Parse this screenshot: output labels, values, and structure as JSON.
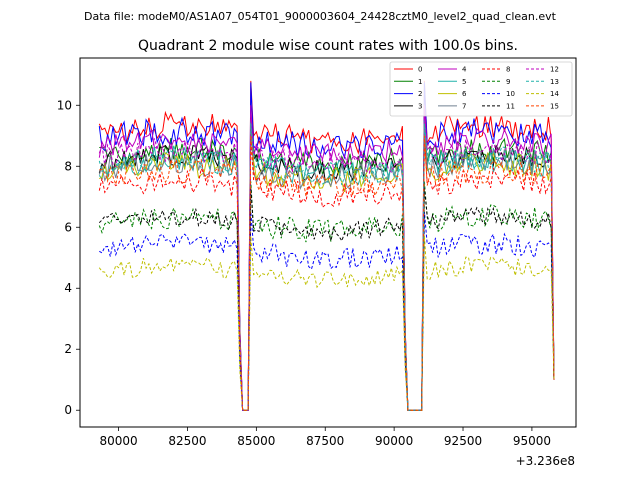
{
  "suptitle": "Data file: modeM0/AS1A07_054T01_9000003604_24428cztM0_level2_quad_clean.evt",
  "chart_data": {
    "type": "line",
    "title": "Quadrant 2 module wise count rates with 100.0s bins.",
    "xlabel": "",
    "ylabel": "",
    "x_offset_label": "+3.236e8",
    "xlim": [
      78600,
      96600
    ],
    "ylim": [
      -0.55,
      11.55
    ],
    "x_ticks": [
      80000,
      82500,
      85000,
      87500,
      90000,
      92500,
      95000
    ],
    "x_tick_labels": [
      "80000",
      "82500",
      "85000",
      "87500",
      "90000",
      "92500",
      "95000"
    ],
    "y_ticks": [
      0,
      2,
      4,
      6,
      8,
      10
    ],
    "y_tick_labels": [
      "0",
      "2",
      "4",
      "6",
      "8",
      "10"
    ],
    "grid": false,
    "legend_position": "top-right",
    "x_range": [
      79300,
      95800
    ],
    "bin_seconds": 100,
    "gaps": [
      {
        "fall_start": 84400,
        "zero_start": 84500,
        "zero_end": 84700,
        "rise_end": 84800
      },
      {
        "fall_start": 90400,
        "zero_start": 90500,
        "zero_end": 91000,
        "rise_end": 91100
      }
    ],
    "series": [
      {
        "name": "0",
        "color": "#ff0000",
        "dash": "solid",
        "base": 9.1,
        "noise": 0.45,
        "spike": 10.8
      },
      {
        "name": "1",
        "color": "#008000",
        "dash": "solid",
        "base": 8.3,
        "noise": 0.4,
        "spike": 9.8
      },
      {
        "name": "2",
        "color": "#0000ff",
        "dash": "solid",
        "base": 8.9,
        "noise": 0.45,
        "spike": 10.75
      },
      {
        "name": "3",
        "color": "#000000",
        "dash": "solid",
        "base": 8.1,
        "noise": 0.35,
        "spike": 9.6
      },
      {
        "name": "4",
        "color": "#bf00bf",
        "dash": "solid",
        "base": 8.6,
        "noise": 0.4,
        "spike": 10.0
      },
      {
        "name": "5",
        "color": "#20b2aa",
        "dash": "solid",
        "base": 8.0,
        "noise": 0.45,
        "spike": 9.5
      },
      {
        "name": "6",
        "color": "#bfbf00",
        "dash": "solid",
        "base": 7.8,
        "noise": 0.4,
        "spike": 9.4
      },
      {
        "name": "7",
        "color": "#708090",
        "dash": "solid",
        "base": 7.9,
        "noise": 0.45,
        "spike": 9.4
      },
      {
        "name": "8",
        "color": "#ff0000",
        "dash": "dashed",
        "base": 7.3,
        "noise": 0.4,
        "spike": 8.9
      },
      {
        "name": "9",
        "color": "#008000",
        "dash": "dashed",
        "base": 6.1,
        "noise": 0.4,
        "spike": 7.5
      },
      {
        "name": "10",
        "color": "#0000ff",
        "dash": "dashed",
        "base": 5.2,
        "noise": 0.35,
        "spike": 6.5
      },
      {
        "name": "11",
        "color": "#000000",
        "dash": "dashed",
        "base": 6.1,
        "noise": 0.3,
        "spike": 7.3
      },
      {
        "name": "12",
        "color": "#bf00bf",
        "dash": "dashed",
        "base": 8.3,
        "noise": 0.4,
        "spike": 9.7
      },
      {
        "name": "13",
        "color": "#20b2aa",
        "dash": "dashed",
        "base": 8.0,
        "noise": 0.4,
        "spike": 9.4
      },
      {
        "name": "14",
        "color": "#bfbf00",
        "dash": "dashed",
        "base": 4.5,
        "noise": 0.3,
        "spike": 5.7
      },
      {
        "name": "15",
        "color": "#ff4500",
        "dash": "dashed",
        "base": 7.6,
        "noise": 0.4,
        "spike": 9.0
      }
    ]
  }
}
